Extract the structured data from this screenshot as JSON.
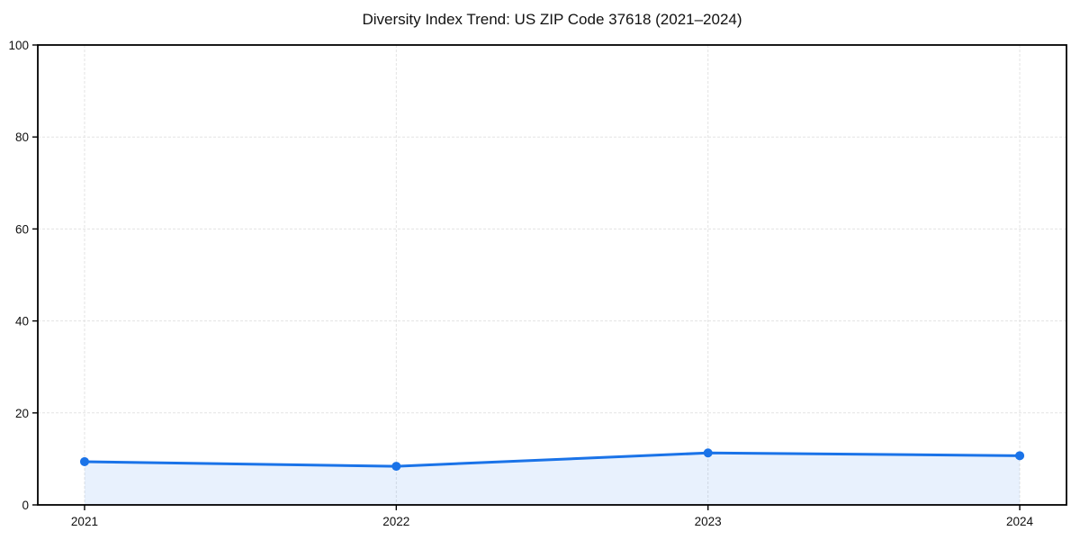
{
  "chart_data": {
    "type": "line",
    "title": "Diversity Index Trend: US ZIP Code 37618 (2021–2024)",
    "x": [
      2021,
      2022,
      2023,
      2024
    ],
    "xticks": [
      "2021",
      "2022",
      "2023",
      "2024"
    ],
    "series": [
      {
        "name": "Diversity Index",
        "values": [
          9.4,
          8.4,
          11.3,
          10.7
        ]
      }
    ],
    "xlabel": "",
    "ylabel": "",
    "ylim": [
      0,
      100
    ],
    "yticks": [
      0,
      20,
      40,
      60,
      80,
      100
    ],
    "grid": "dashed both axes",
    "legend": "none",
    "area_fill": true,
    "marker": "circle",
    "colors": {
      "line": "#1a73e8",
      "marker": "#1a73e8",
      "fill": "rgba(26,115,232,0.10)",
      "grid": "#e3e3e3",
      "spine": "#000000",
      "tick_label": "#111111",
      "title": "#111111",
      "background": "#ffffff"
    }
  }
}
